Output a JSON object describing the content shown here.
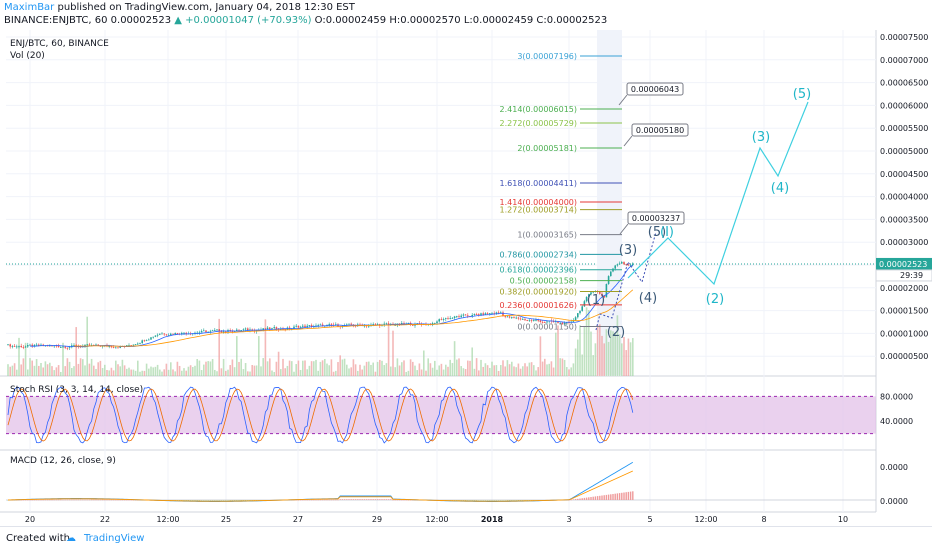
{
  "header": {
    "publisher": "MaximBar",
    "published": " published on TradingView.com, January 04, 2018 12:30 EST",
    "symbol_line_a": "BINANCE:ENJBTC, 60  ",
    "last": "0.00002523",
    "change": " ▲ +0.00001047 (+70.93%)",
    "ohlc": " O:0.00002459 H:0.00002570 L:0.00002459 C:0.00002523"
  },
  "legend": {
    "symbol": "ENJ/BTC, 60, BINANCE",
    "volume": "Vol (20)",
    "stoch": "Stoch RSI (3, 3, 14, 14, close)",
    "macd": "MACD (12, 26, close, 9)"
  },
  "price_axis": {
    "ticks": [
      "0.00007500",
      "0.00007000",
      "0.00006500",
      "0.00006000",
      "0.00005500",
      "0.00005000",
      "0.00004500",
      "0.00004000",
      "0.00003500",
      "0.00003000",
      "0.00002500",
      "0.00002000",
      "0.00001500",
      "0.00001000",
      "0.00000500"
    ],
    "current": "0.00002523",
    "countdown": "29:39"
  },
  "stoch_axis": {
    "ticks": [
      "80.0000",
      "40.0000"
    ]
  },
  "macd_axis": {
    "ticks": [
      "0.0000",
      "0.0000"
    ]
  },
  "time_axis": {
    "ticks": [
      "20",
      "22",
      "12:00",
      "25",
      "27",
      "29",
      "12:00",
      "2018",
      "3",
      "5",
      "12:00",
      "8",
      "10"
    ]
  },
  "fib_levels": [
    {
      "label": "3(0.00007196)",
      "color": "#3aa2d6"
    },
    {
      "label": "2.414(0.00006015)",
      "color": "#4caf50"
    },
    {
      "label": "2.272(0.00005729)",
      "color": "#8bc34a"
    },
    {
      "label": "2(0.00005181)",
      "color": "#4caf50"
    },
    {
      "label": "1.618(0.00004411)",
      "color": "#3f51b5"
    },
    {
      "label": "1.414(0.00004000)",
      "color": "#e53935"
    },
    {
      "label": "1.272(0.00003714)",
      "color": "#9e9d24"
    },
    {
      "label": "1(0.00003165)",
      "color": "#787b86"
    },
    {
      "label": "0.786(0.00002734)",
      "color": "#2196a3"
    },
    {
      "label": "0.618(0.00002396)",
      "color": "#26a69a"
    },
    {
      "label": "0.5(0.00002158)",
      "color": "#4caf50"
    },
    {
      "label": "0.382(0.00001920)",
      "color": "#9e9d24"
    },
    {
      "label": "0.236(0.00001626)",
      "color": "#e53935"
    },
    {
      "label": "0(0.00001150)",
      "color": "#787b86"
    }
  ],
  "callouts": [
    "0.00006043",
    "0.00005180",
    "0.00003237"
  ],
  "wave_labels": {
    "dark": [
      "(1)",
      "(2)",
      "(3)",
      "(4)",
      "(5)"
    ],
    "cyan": [
      "(I)",
      "(2)",
      "(3)",
      "(4)",
      "(5)"
    ]
  },
  "colors": {
    "bull": "#26a69a",
    "bear": "#ef5350",
    "projection": "#3fd0e0",
    "wave_dark": "#3c5a78",
    "stoch_fill": "#e1bee7"
  },
  "footer": {
    "created": "Created with",
    "brand": "TradingView"
  }
}
